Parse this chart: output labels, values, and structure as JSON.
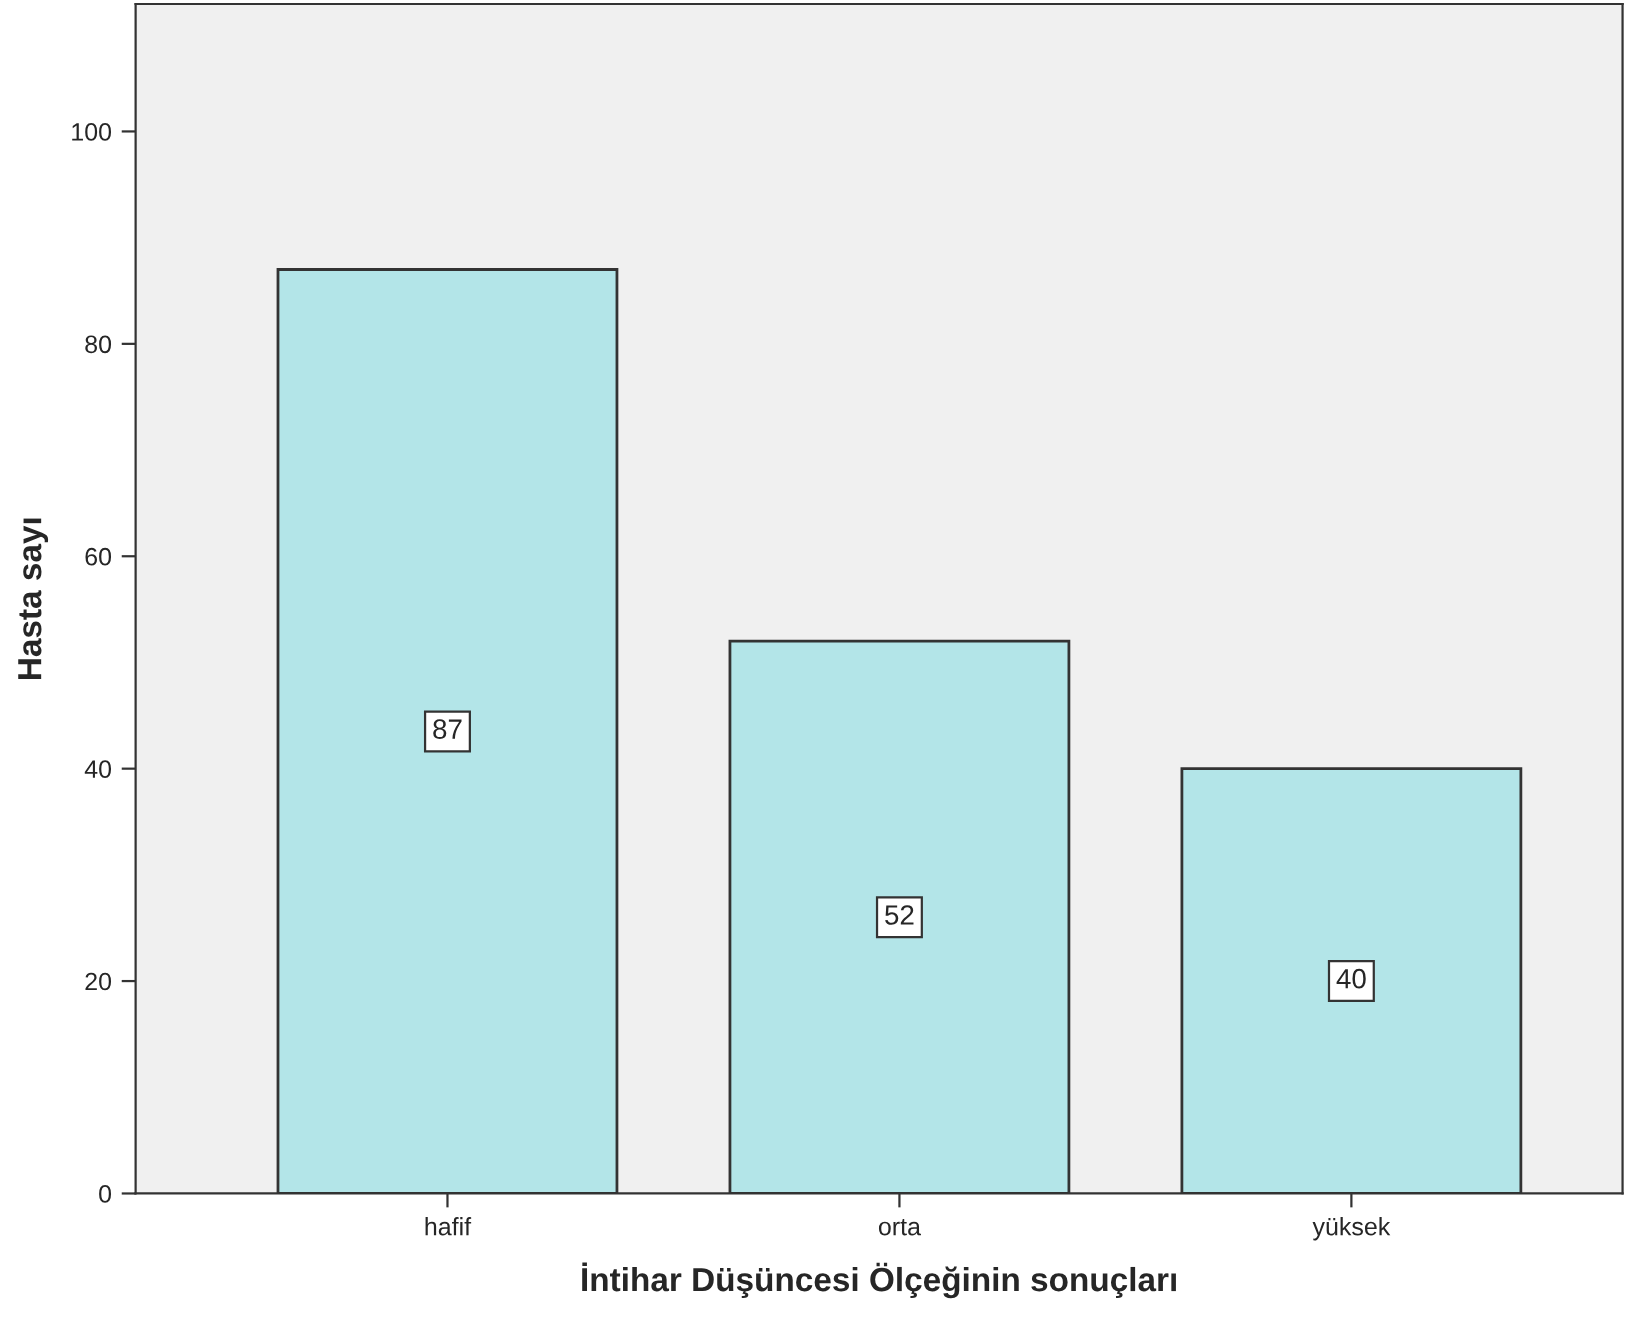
{
  "chart_data": {
    "type": "bar",
    "xlabel": "İntihar Düşüncesi Ölçeğinin sonuçları",
    "ylabel": "Hasta sayı",
    "categories": [
      "hafif",
      "orta",
      "yüksek"
    ],
    "values": [
      87,
      52,
      40
    ],
    "color": "#b3e5e8",
    "ylim": [
      0,
      112
    ],
    "yticks": [
      0,
      20,
      40,
      60,
      80,
      100
    ],
    "grid": false,
    "data_labels": true
  }
}
